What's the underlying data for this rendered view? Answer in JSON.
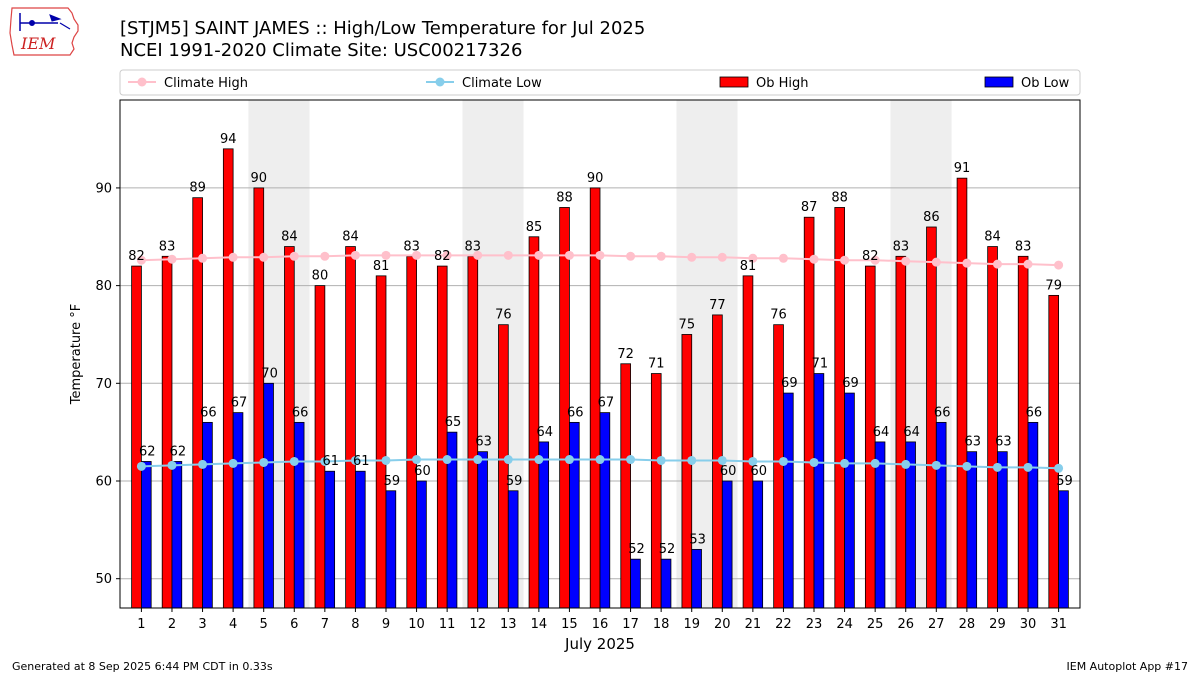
{
  "header": {
    "title_line1": "[STJM5] SAINT JAMES :: High/Low Temperature for Jul 2025",
    "title_line2": "NCEI 1991-2020 Climate Site: USC00217326"
  },
  "logo": {
    "text": "IEM",
    "icon": "iowa-state-outline-logo"
  },
  "footer": {
    "left": "Generated at 8 Sep 2025 6:44 PM CDT in 0.33s",
    "right": "IEM Autoplot App #17"
  },
  "chart_data": {
    "type": "bar",
    "xlabel": "July 2025",
    "ylabel": "Temperature °F",
    "ylim": [
      47,
      99
    ],
    "yticks": [
      50,
      60,
      70,
      80,
      90
    ],
    "grid": "horizontal",
    "legend_position": "top",
    "categories": [
      "1",
      "2",
      "3",
      "4",
      "5",
      "6",
      "7",
      "8",
      "9",
      "10",
      "11",
      "12",
      "13",
      "14",
      "15",
      "16",
      "17",
      "18",
      "19",
      "20",
      "21",
      "22",
      "23",
      "24",
      "25",
      "26",
      "27",
      "28",
      "29",
      "30",
      "31"
    ],
    "weekend_shading": [
      [
        5,
        6
      ],
      [
        12,
        13
      ],
      [
        19,
        20
      ],
      [
        26,
        27
      ]
    ],
    "series": [
      {
        "name": "Climate High",
        "kind": "line",
        "color": "#ffc0cb",
        "values": [
          82.6,
          82.7,
          82.8,
          82.9,
          82.9,
          83.0,
          83.0,
          83.1,
          83.1,
          83.1,
          83.1,
          83.1,
          83.1,
          83.1,
          83.1,
          83.1,
          83.0,
          83.0,
          82.9,
          82.9,
          82.8,
          82.8,
          82.7,
          82.6,
          82.6,
          82.5,
          82.4,
          82.3,
          82.2,
          82.2,
          82.1
        ]
      },
      {
        "name": "Climate Low",
        "kind": "line",
        "color": "#87ceeb",
        "values": [
          61.5,
          61.6,
          61.7,
          61.8,
          61.9,
          62.0,
          62.0,
          62.1,
          62.1,
          62.2,
          62.2,
          62.2,
          62.2,
          62.2,
          62.2,
          62.2,
          62.2,
          62.1,
          62.1,
          62.1,
          62.0,
          62.0,
          61.9,
          61.8,
          61.8,
          61.7,
          61.6,
          61.5,
          61.4,
          61.4,
          61.3
        ]
      },
      {
        "name": "Ob High",
        "kind": "bar",
        "color": "#ff0000",
        "values": [
          82,
          83,
          89,
          94,
          90,
          84,
          80,
          84,
          81,
          83,
          82,
          83,
          76,
          85,
          88,
          90,
          72,
          71,
          75,
          77,
          81,
          76,
          87,
          88,
          82,
          83,
          86,
          91,
          84,
          83,
          79
        ]
      },
      {
        "name": "Ob Low",
        "kind": "bar",
        "color": "#0000ff",
        "values": [
          62,
          62,
          66,
          67,
          70,
          66,
          61,
          61,
          59,
          60,
          65,
          63,
          59,
          64,
          66,
          67,
          52,
          52,
          53,
          60,
          60,
          69,
          71,
          69,
          64,
          64,
          66,
          63,
          63,
          66,
          59
        ]
      }
    ]
  }
}
